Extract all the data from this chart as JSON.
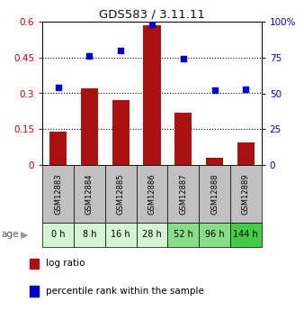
{
  "title": "GDS583 / 3.11.11",
  "categories": [
    "GSM12883",
    "GSM12884",
    "GSM12885",
    "GSM12886",
    "GSM12887",
    "GSM12888",
    "GSM12889"
  ],
  "age_labels": [
    "0 h",
    "8 h",
    "16 h",
    "28 h",
    "52 h",
    "96 h",
    "144 h"
  ],
  "log_ratio": [
    0.14,
    0.32,
    0.27,
    0.585,
    0.22,
    0.03,
    0.095
  ],
  "percentile_rank": [
    54,
    76,
    80,
    98,
    74,
    52,
    53
  ],
  "bar_color": "#aa1111",
  "dot_color": "#0000cc",
  "left_ylim": [
    0,
    0.6
  ],
  "right_ylim": [
    0,
    100
  ],
  "left_yticks": [
    0,
    0.15,
    0.3,
    0.45,
    0.6
  ],
  "right_yticks": [
    0,
    25,
    50,
    75,
    100
  ],
  "left_yticklabels": [
    "0",
    "0.15",
    "0.3",
    "0.45",
    "0.6"
  ],
  "right_yticklabels": [
    "0",
    "25",
    "50",
    "75",
    "100%"
  ],
  "left_tick_color": "#cc0000",
  "right_tick_color": "#0000cc",
  "grid_yticks": [
    0.15,
    0.3,
    0.45
  ],
  "age_row_colors": [
    "#d4f5d4",
    "#d4f5d4",
    "#d4f5d4",
    "#d4f5d4",
    "#88dd88",
    "#88dd88",
    "#44cc44"
  ],
  "gsm_row_color": "#c0c0c0",
  "bg_color": "#ffffff"
}
